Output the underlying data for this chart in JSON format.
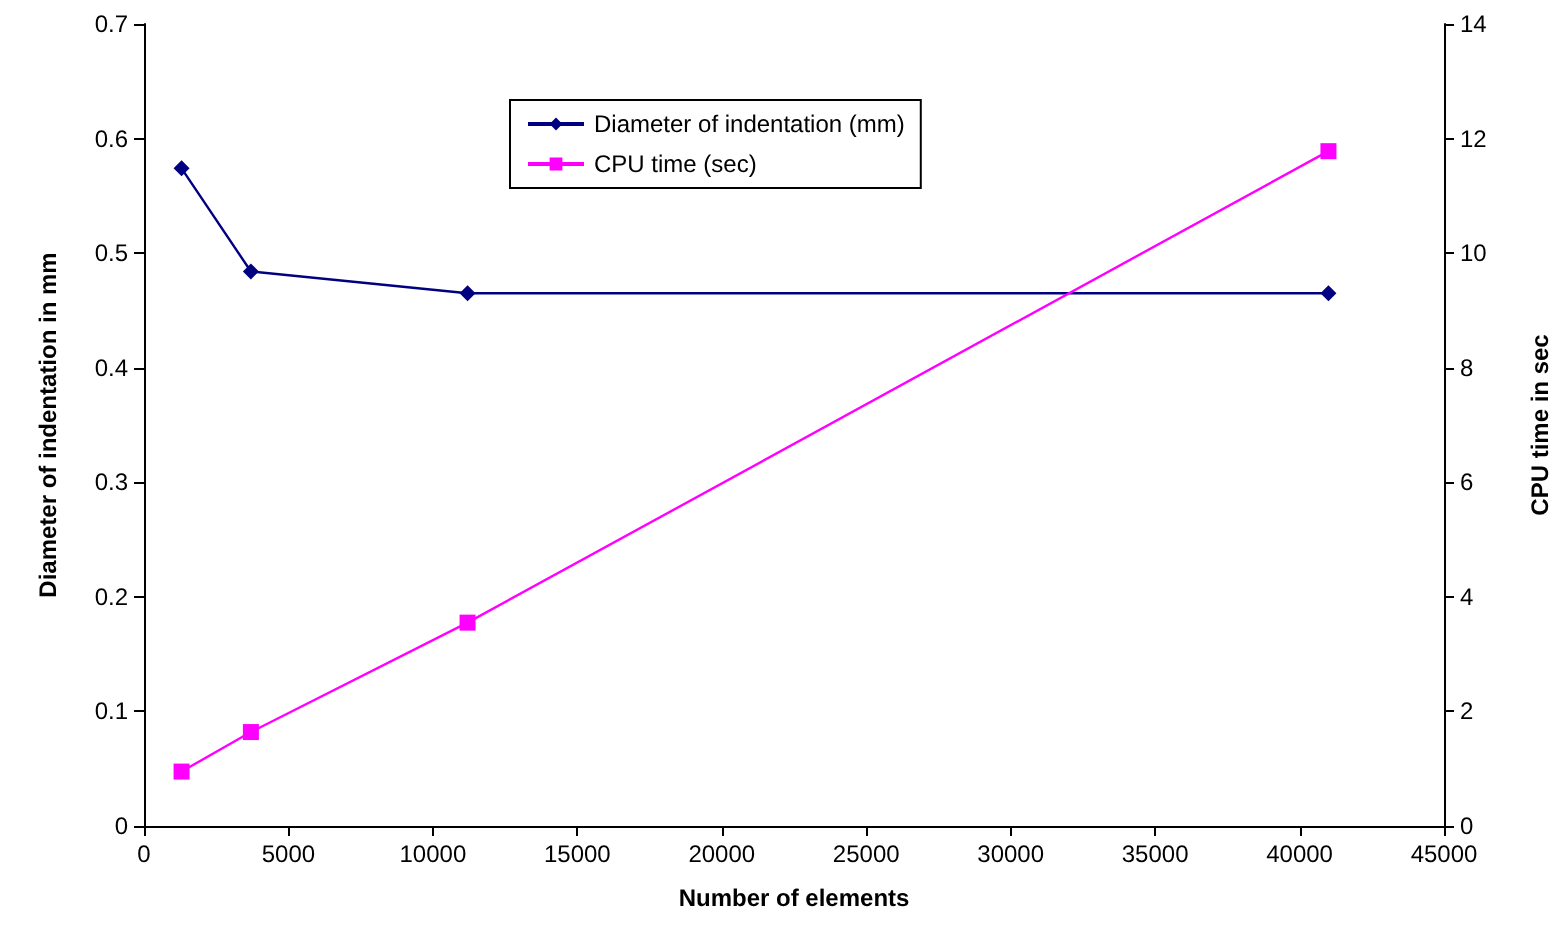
{
  "chart_data": {
    "type": "line",
    "xlabel": "Number of elements",
    "ylabel": "Diameter of indentation in mm",
    "y2label": "CPU time in sec",
    "x": [
      1300,
      3700,
      11200,
      41000
    ],
    "series": [
      {
        "name": "Diameter of indentation (mm)",
        "color": "#000080",
        "values": [
          0.574,
          0.484,
          0.465,
          0.465
        ],
        "marker": "diamond"
      },
      {
        "name": "CPU time (sec)",
        "color": "#ff00ff",
        "values": [
          0.95,
          1.64,
          3.55,
          11.78
        ],
        "marker": "square",
        "axis": "y2"
      }
    ],
    "xlim": [
      0,
      45000
    ],
    "xticks": [
      0,
      5000,
      10000,
      15000,
      20000,
      25000,
      30000,
      35000,
      40000,
      45000
    ],
    "ylim": [
      0,
      0.7
    ],
    "yticks": [
      0,
      0.1,
      0.2,
      0.3,
      0.4,
      0.5,
      0.6,
      0.7
    ],
    "y2lim": [
      0,
      14
    ],
    "y2ticks": [
      0,
      2,
      4,
      6,
      8,
      10,
      12,
      14
    ],
    "grid": false,
    "legend": "top",
    "line_style": "solid"
  }
}
